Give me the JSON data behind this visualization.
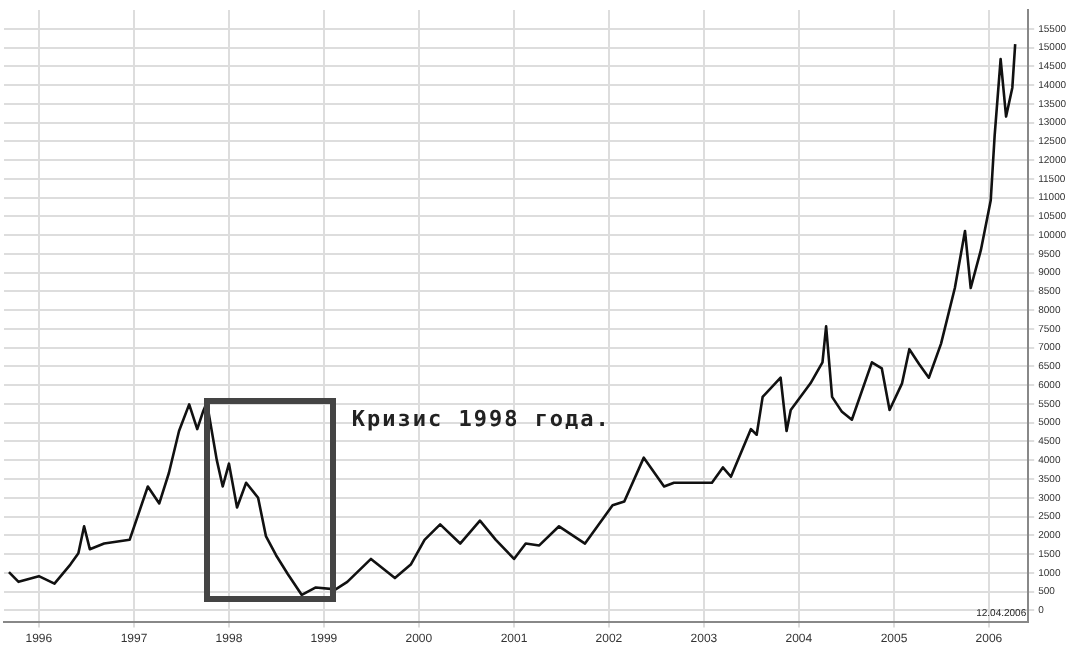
{
  "chart_data": {
    "type": "line",
    "x": [
      "1995-09-08",
      "1995-10-15",
      "1996-01-01",
      "1996-03-01",
      "1996-05-01",
      "1996-06-01",
      "1996-06-23",
      "1996-07-15",
      "1996-09-08",
      "1996-12-15",
      "1997-02-23",
      "1997-04-08",
      "1997-05-15",
      "1997-06-23",
      "1997-08-01",
      "1997-09-01",
      "1997-09-23",
      "1997-10-08",
      "1997-11-15",
      "1997-12-08",
      "1998-01-01",
      "1998-02-01",
      "1998-03-08",
      "1998-04-23",
      "1998-05-23",
      "1998-07-01",
      "1998-08-15",
      "1998-10-08",
      "1998-12-01",
      "1999-02-15",
      "1999-04-01",
      "1999-07-01",
      "1999-10-01",
      "1999-12-01",
      "2000-01-23",
      "2000-03-23",
      "2000-06-08",
      "2000-08-23",
      "2000-10-23",
      "2001-01-01",
      "2001-02-15",
      "2001-04-08",
      "2001-06-23",
      "2001-10-01",
      "2002-01-15",
      "2002-03-01",
      "2002-05-15",
      "2002-08-01",
      "2002-09-08",
      "2003-02-01",
      "2003-03-15",
      "2003-04-15",
      "2003-07-01",
      "2003-07-23",
      "2003-08-15",
      "2003-10-23",
      "2003-11-15",
      "2003-12-01",
      "2004-02-15",
      "2004-04-01",
      "2004-04-15",
      "2004-05-08",
      "2004-06-15",
      "2004-07-23",
      "2004-10-08",
      "2004-11-15",
      "2004-12-15",
      "2005-02-01",
      "2005-03-01",
      "2005-04-08",
      "2005-05-15",
      "2005-07-01",
      "2005-08-23",
      "2005-10-01",
      "2005-10-23",
      "2005-12-01",
      "2006-01-08",
      "2006-01-23",
      "2006-02-15",
      "2006-03-08",
      "2006-04-01",
      "2006-04-12"
    ],
    "series": [
      {
        "color": "#111111",
        "values": [
          1020,
          760,
          910,
          710,
          1220,
          1520,
          2240,
          1630,
          1780,
          1880,
          3300,
          2850,
          3660,
          4780,
          5490,
          4830,
          5290,
          5540,
          4010,
          3300,
          3910,
          2740,
          3400,
          3000,
          1980,
          1470,
          970,
          410,
          610,
          560,
          760,
          1370,
          860,
          1220,
          1880,
          2290,
          1780,
          2390,
          1880,
          1370,
          1780,
          1730,
          2240,
          1780,
          2800,
          2900,
          4070,
          3300,
          3400,
          3400,
          3810,
          3560,
          4830,
          4680,
          5690,
          6200,
          4780,
          5340,
          6050,
          6610,
          7570,
          5690,
          5290,
          5080,
          6610,
          6450,
          5340,
          6050,
          6960,
          6560,
          6200,
          7110,
          8590,
          10110,
          8590,
          9600,
          10930,
          12650,
          14690,
          13160,
          13930,
          15090
        ]
      }
    ],
    "xlim": [
      "1995-08-20",
      "2006-06-01"
    ],
    "xticks": [
      "1996",
      "1997",
      "1998",
      "1999",
      "2000",
      "2001",
      "2002",
      "2003",
      "2004",
      "2005",
      "2006"
    ],
    "ylim": [
      -300,
      16000
    ],
    "yticks": [
      0,
      500,
      1000,
      1500,
      2000,
      2500,
      3000,
      3500,
      4000,
      4500,
      5000,
      5500,
      6000,
      6500,
      7000,
      7500,
      8000,
      8500,
      9000,
      9500,
      10000,
      10500,
      11000,
      11500,
      12000,
      12500,
      13000,
      13500,
      14000,
      14500,
      15000,
      15500
    ],
    "annotations": [
      "Кризис 1998 года.",
      "12.04.2006"
    ],
    "grid": true,
    "legend": false,
    "marker": "none",
    "line_style": "solid"
  }
}
